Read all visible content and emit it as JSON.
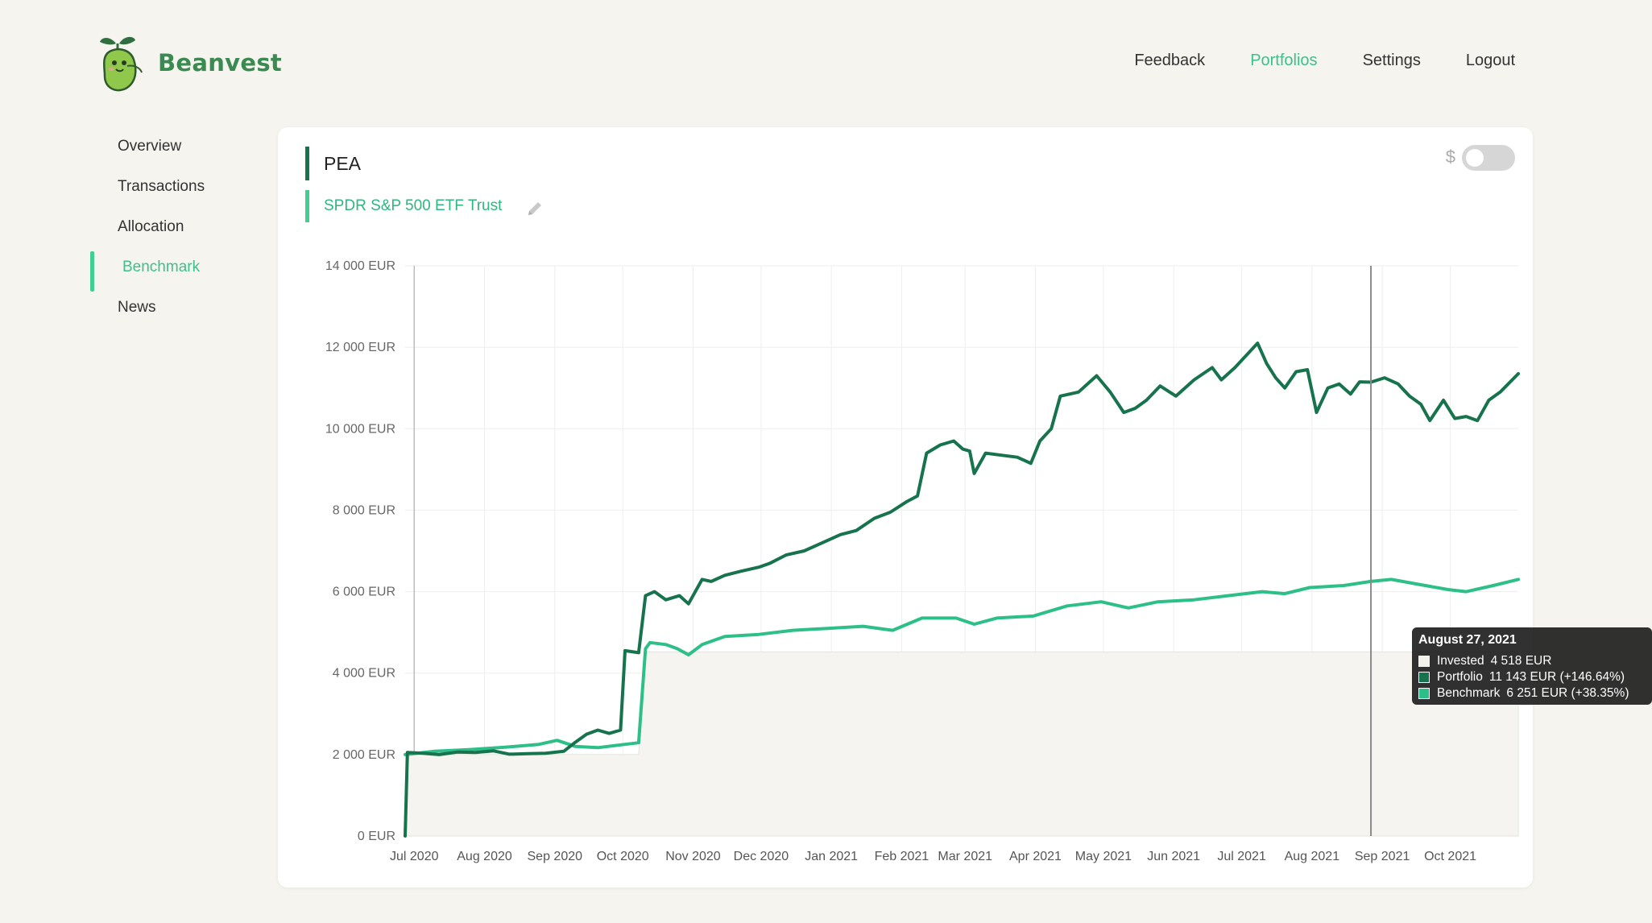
{
  "brand": {
    "name": "Beanvest",
    "logo_icon": "bean-mascot-icon"
  },
  "topnav": [
    {
      "label": "Feedback",
      "active": false
    },
    {
      "label": "Portfolios",
      "active": true
    },
    {
      "label": "Settings",
      "active": false
    },
    {
      "label": "Logout",
      "active": false
    }
  ],
  "sidenav": [
    {
      "label": "Overview",
      "active": false
    },
    {
      "label": "Transactions",
      "active": false
    },
    {
      "label": "Allocation",
      "active": false
    },
    {
      "label": "Benchmark",
      "active": true
    },
    {
      "label": "News",
      "active": false
    }
  ],
  "card": {
    "portfolio_name": "PEA",
    "benchmark_name": "SPDR S&P 500 ETF Trust",
    "currency_symbol": "$",
    "currency_toggle_on": false
  },
  "colors": {
    "portfolio": "#16734d",
    "benchmark": "#2dbf88",
    "invested_fill": "#f5f4f0",
    "accent": "#3fbf8a"
  },
  "tooltip": {
    "title": "August 27, 2021",
    "invested_label": "Invested",
    "invested_value": "4 518 EUR",
    "portfolio_label": "Portfolio",
    "portfolio_value": "11 143 EUR (+146.64%)",
    "benchmark_label": "Benchmark",
    "benchmark_value": "6 251 EUR (+38.35%)"
  },
  "chart_data": {
    "type": "line",
    "title": "",
    "xlabel": "",
    "ylabel": "",
    "ylim": [
      0,
      14000
    ],
    "y_ticks": [
      {
        "value": 0,
        "label": "0 EUR"
      },
      {
        "value": 2000,
        "label": "2 000 EUR"
      },
      {
        "value": 4000,
        "label": "4 000 EUR"
      },
      {
        "value": 6000,
        "label": "6 000 EUR"
      },
      {
        "value": 8000,
        "label": "8 000 EUR"
      },
      {
        "value": 10000,
        "label": "10 000 EUR"
      },
      {
        "value": 12000,
        "label": "12 000 EUR"
      },
      {
        "value": 14000,
        "label": "14 000 EUR"
      }
    ],
    "x_range": [
      "2020-06-27",
      "2021-10-31"
    ],
    "x_ticks": [
      {
        "date": "2020-07-01",
        "label": "Jul 2020"
      },
      {
        "date": "2020-08-01",
        "label": "Aug 2020"
      },
      {
        "date": "2020-09-01",
        "label": "Sep 2020"
      },
      {
        "date": "2020-10-01",
        "label": "Oct 2020"
      },
      {
        "date": "2020-11-01",
        "label": "Nov 2020"
      },
      {
        "date": "2020-12-01",
        "label": "Dec 2020"
      },
      {
        "date": "2021-01-01",
        "label": "Jan 2021"
      },
      {
        "date": "2021-02-01",
        "label": "Feb 2021"
      },
      {
        "date": "2021-03-01",
        "label": "Mar 2021"
      },
      {
        "date": "2021-04-01",
        "label": "Apr 2021"
      },
      {
        "date": "2021-05-01",
        "label": "May 2021"
      },
      {
        "date": "2021-06-01",
        "label": "Jun 2021"
      },
      {
        "date": "2021-07-01",
        "label": "Jul 2021"
      },
      {
        "date": "2021-08-01",
        "label": "Aug 2021"
      },
      {
        "date": "2021-09-01",
        "label": "Sep 2021"
      },
      {
        "date": "2021-10-01",
        "label": "Oct 2021"
      }
    ],
    "hover_date": "2021-08-27",
    "series": [
      {
        "name": "Invested",
        "kind": "area",
        "points": [
          [
            "2020-06-27",
            0
          ],
          [
            "2020-06-28",
            2000
          ],
          [
            "2020-10-08",
            2000
          ],
          [
            "2020-10-11",
            4518
          ],
          [
            "2021-10-31",
            4518
          ]
        ]
      },
      {
        "name": "Portfolio",
        "kind": "line",
        "points": [
          [
            "2020-06-27",
            0
          ],
          [
            "2020-06-28",
            2050
          ],
          [
            "2020-07-05",
            2030
          ],
          [
            "2020-07-12",
            2000
          ],
          [
            "2020-07-20",
            2060
          ],
          [
            "2020-07-28",
            2050
          ],
          [
            "2020-08-05",
            2090
          ],
          [
            "2020-08-12",
            2010
          ],
          [
            "2020-08-20",
            2020
          ],
          [
            "2020-08-28",
            2030
          ],
          [
            "2020-09-05",
            2080
          ],
          [
            "2020-09-10",
            2300
          ],
          [
            "2020-09-15",
            2500
          ],
          [
            "2020-09-20",
            2600
          ],
          [
            "2020-09-25",
            2520
          ],
          [
            "2020-09-30",
            2600
          ],
          [
            "2020-10-02",
            4550
          ],
          [
            "2020-10-08",
            4500
          ],
          [
            "2020-10-11",
            5900
          ],
          [
            "2020-10-15",
            6000
          ],
          [
            "2020-10-20",
            5800
          ],
          [
            "2020-10-26",
            5900
          ],
          [
            "2020-10-30",
            5700
          ],
          [
            "2020-11-05",
            6300
          ],
          [
            "2020-11-09",
            6250
          ],
          [
            "2020-11-15",
            6400
          ],
          [
            "2020-11-22",
            6500
          ],
          [
            "2020-11-30",
            6600
          ],
          [
            "2020-12-05",
            6700
          ],
          [
            "2020-12-12",
            6900
          ],
          [
            "2020-12-20",
            7000
          ],
          [
            "2020-12-28",
            7200
          ],
          [
            "2021-01-05",
            7400
          ],
          [
            "2021-01-12",
            7500
          ],
          [
            "2021-01-20",
            7800
          ],
          [
            "2021-01-27",
            7950
          ],
          [
            "2021-02-03",
            8200
          ],
          [
            "2021-02-08",
            8350
          ],
          [
            "2021-02-12",
            9400
          ],
          [
            "2021-02-18",
            9600
          ],
          [
            "2021-02-24",
            9700
          ],
          [
            "2021-02-28",
            9500
          ],
          [
            "2021-03-03",
            9450
          ],
          [
            "2021-03-05",
            8900
          ],
          [
            "2021-03-10",
            9400
          ],
          [
            "2021-03-17",
            9350
          ],
          [
            "2021-03-24",
            9300
          ],
          [
            "2021-03-30",
            9150
          ],
          [
            "2021-04-03",
            9700
          ],
          [
            "2021-04-08",
            10000
          ],
          [
            "2021-04-12",
            10800
          ],
          [
            "2021-04-20",
            10900
          ],
          [
            "2021-04-28",
            11300
          ],
          [
            "2021-05-04",
            10900
          ],
          [
            "2021-05-10",
            10400
          ],
          [
            "2021-05-15",
            10500
          ],
          [
            "2021-05-20",
            10700
          ],
          [
            "2021-05-26",
            11050
          ],
          [
            "2021-06-02",
            10800
          ],
          [
            "2021-06-10",
            11200
          ],
          [
            "2021-06-18",
            11500
          ],
          [
            "2021-06-22",
            11200
          ],
          [
            "2021-06-28",
            11500
          ],
          [
            "2021-07-03",
            11800
          ],
          [
            "2021-07-08",
            12100
          ],
          [
            "2021-07-12",
            11600
          ],
          [
            "2021-07-16",
            11250
          ],
          [
            "2021-07-20",
            11000
          ],
          [
            "2021-07-25",
            11400
          ],
          [
            "2021-07-30",
            11450
          ],
          [
            "2021-08-03",
            10400
          ],
          [
            "2021-08-08",
            11000
          ],
          [
            "2021-08-13",
            11100
          ],
          [
            "2021-08-18",
            10850
          ],
          [
            "2021-08-22",
            11150
          ],
          [
            "2021-08-27",
            11143
          ],
          [
            "2021-09-02",
            11250
          ],
          [
            "2021-09-08",
            11100
          ],
          [
            "2021-09-13",
            10800
          ],
          [
            "2021-09-18",
            10600
          ],
          [
            "2021-09-22",
            10200
          ],
          [
            "2021-09-28",
            10700
          ],
          [
            "2021-10-03",
            10250
          ],
          [
            "2021-10-08",
            10300
          ],
          [
            "2021-10-13",
            10200
          ],
          [
            "2021-10-18",
            10700
          ],
          [
            "2021-10-23",
            10900
          ],
          [
            "2021-10-31",
            11350
          ]
        ]
      },
      {
        "name": "Benchmark",
        "kind": "line",
        "points": [
          [
            "2020-06-27",
            2000
          ],
          [
            "2020-07-10",
            2080
          ],
          [
            "2020-07-25",
            2120
          ],
          [
            "2020-08-10",
            2180
          ],
          [
            "2020-08-25",
            2250
          ],
          [
            "2020-09-02",
            2350
          ],
          [
            "2020-09-10",
            2200
          ],
          [
            "2020-09-20",
            2170
          ],
          [
            "2020-10-02",
            2250
          ],
          [
            "2020-10-08",
            2290
          ],
          [
            "2020-10-11",
            4600
          ],
          [
            "2020-10-13",
            4750
          ],
          [
            "2020-10-20",
            4700
          ],
          [
            "2020-10-25",
            4600
          ],
          [
            "2020-10-30",
            4450
          ],
          [
            "2020-11-05",
            4700
          ],
          [
            "2020-11-15",
            4900
          ],
          [
            "2020-11-30",
            4950
          ],
          [
            "2020-12-15",
            5050
          ],
          [
            "2020-12-31",
            5100
          ],
          [
            "2021-01-15",
            5150
          ],
          [
            "2021-01-28",
            5050
          ],
          [
            "2021-02-10",
            5350
          ],
          [
            "2021-02-25",
            5350
          ],
          [
            "2021-03-05",
            5200
          ],
          [
            "2021-03-15",
            5350
          ],
          [
            "2021-03-31",
            5400
          ],
          [
            "2021-04-15",
            5650
          ],
          [
            "2021-04-30",
            5750
          ],
          [
            "2021-05-12",
            5600
          ],
          [
            "2021-05-25",
            5750
          ],
          [
            "2021-06-10",
            5800
          ],
          [
            "2021-06-25",
            5900
          ],
          [
            "2021-07-10",
            6000
          ],
          [
            "2021-07-20",
            5950
          ],
          [
            "2021-07-31",
            6100
          ],
          [
            "2021-08-15",
            6150
          ],
          [
            "2021-08-27",
            6251
          ],
          [
            "2021-09-05",
            6300
          ],
          [
            "2021-09-15",
            6200
          ],
          [
            "2021-09-30",
            6050
          ],
          [
            "2021-10-08",
            6000
          ],
          [
            "2021-10-20",
            6150
          ],
          [
            "2021-10-31",
            6300
          ]
        ]
      }
    ]
  }
}
